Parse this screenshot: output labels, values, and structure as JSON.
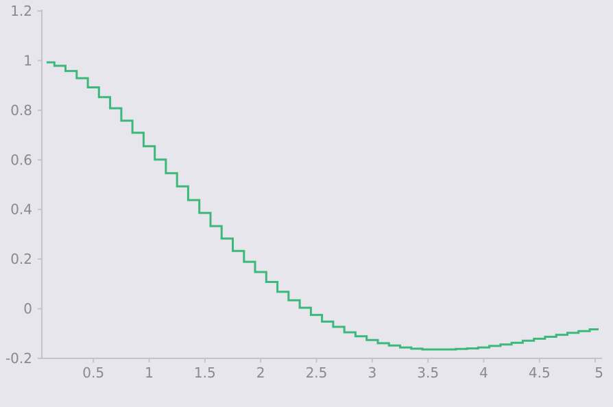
{
  "chart_data": {
    "type": "line",
    "step": true,
    "title": "",
    "xlabel": "",
    "ylabel": "",
    "xlim": [
      0.05,
      5.03
    ],
    "ylim": [
      -0.2,
      1.2
    ],
    "grid": false,
    "legend": "none",
    "x_ticks": [
      "0.5",
      "1",
      "1.5",
      "2",
      "2.5",
      "3",
      "3.5",
      "4",
      "4.5",
      "5"
    ],
    "y_ticks": [
      "1.2",
      "1",
      "0.8",
      "0.6",
      "0.4",
      "0.2",
      "0",
      "-0.2"
    ],
    "colors": {
      "series": "#3db87b",
      "axis": "#c4c4c8",
      "tick_text": "#8a8a8a",
      "background": "#e6e6ec"
    },
    "series": [
      {
        "x": [
          0.1,
          0.2,
          0.3,
          0.4,
          0.5,
          0.6,
          0.7,
          0.8,
          0.9,
          1.0,
          1.1,
          1.2,
          1.3,
          1.4,
          1.5,
          1.6,
          1.7,
          1.8,
          1.9,
          2.0,
          2.1,
          2.2,
          2.3,
          2.4,
          2.5,
          2.6,
          2.7,
          2.8,
          2.9,
          3.0,
          3.1,
          3.2,
          3.3,
          3.4,
          3.5,
          3.6,
          3.7,
          3.8,
          3.9,
          4.0,
          4.1,
          4.2,
          4.3,
          4.4,
          4.5,
          4.6,
          4.7,
          4.8,
          4.9,
          5.0
        ],
        "y": [
          0.993,
          0.979,
          0.958,
          0.929,
          0.892,
          0.853,
          0.808,
          0.758,
          0.709,
          0.655,
          0.601,
          0.546,
          0.493,
          0.438,
          0.386,
          0.333,
          0.283,
          0.233,
          0.189,
          0.148,
          0.108,
          0.068,
          0.034,
          0.004,
          -0.025,
          -0.052,
          -0.073,
          -0.095,
          -0.111,
          -0.126,
          -0.139,
          -0.148,
          -0.156,
          -0.161,
          -0.164,
          -0.164,
          -0.164,
          -0.162,
          -0.16,
          -0.156,
          -0.15,
          -0.144,
          -0.137,
          -0.129,
          -0.121,
          -0.113,
          -0.105,
          -0.097,
          -0.09,
          -0.083
        ]
      }
    ]
  }
}
